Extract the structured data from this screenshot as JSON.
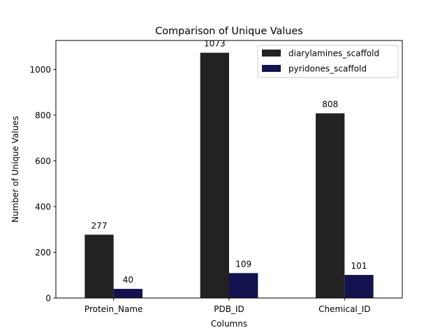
{
  "chart_data": {
    "type": "bar",
    "title": "Comparison of Unique Values",
    "xlabel": "Columns",
    "ylabel": "Number of Unique Values",
    "categories": [
      "Protein_Name",
      "PDB_ID",
      "Chemical_ID"
    ],
    "series": [
      {
        "name": "diarylamines_scaffold",
        "values": [
          277,
          1073,
          808
        ],
        "color": "#222222"
      },
      {
        "name": "pyridones_scaffold",
        "values": [
          40,
          109,
          101
        ],
        "color": "#12124f"
      }
    ],
    "ylim": [
      0,
      1126.65
    ],
    "yticks": [
      0,
      200,
      400,
      600,
      800,
      1000
    ],
    "grid": false,
    "legend_position": "top-right"
  }
}
